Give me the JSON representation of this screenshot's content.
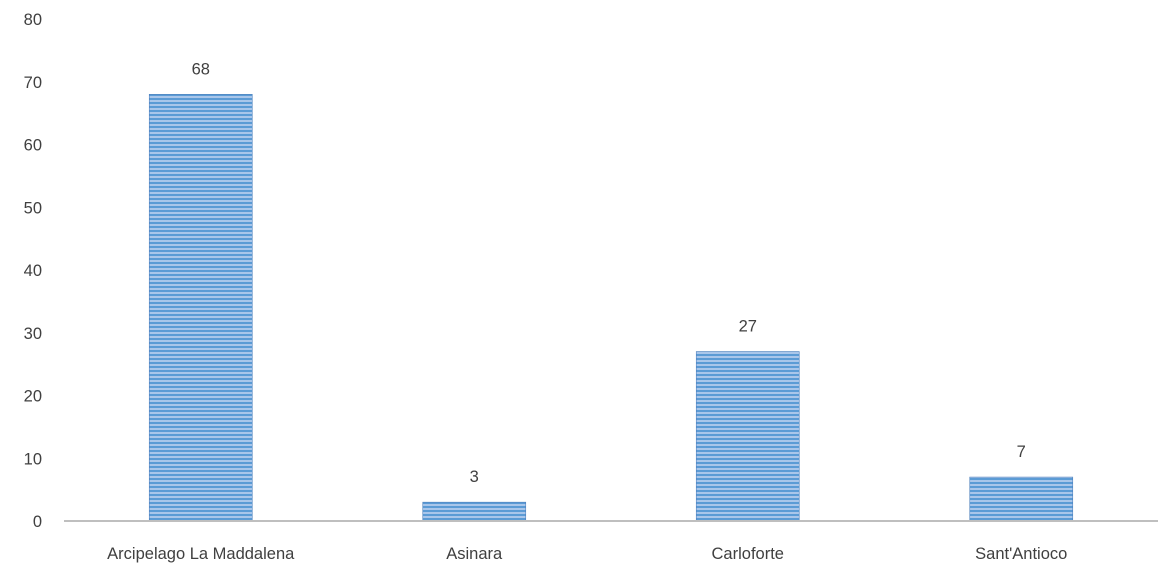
{
  "chart_data": {
    "type": "bar",
    "title": "",
    "xlabel": "",
    "ylabel": "",
    "categories": [
      "Arcipelago La Maddalena",
      "Asinara",
      "Carloforte",
      "Sant'Antioco"
    ],
    "values": [
      68,
      3,
      27,
      7
    ],
    "ylim": [
      0,
      80
    ],
    "yticks": [
      0,
      10,
      20,
      30,
      40,
      50,
      60,
      70,
      80
    ],
    "grid": false,
    "legend": "none",
    "data_labels": true,
    "colors": {
      "bar_fill": "#8db4e2",
      "bar_stripe": "#5b9bd5",
      "bar_edge": "#4f81bd",
      "axis": "#bfbfbf",
      "text": "#404040"
    }
  }
}
